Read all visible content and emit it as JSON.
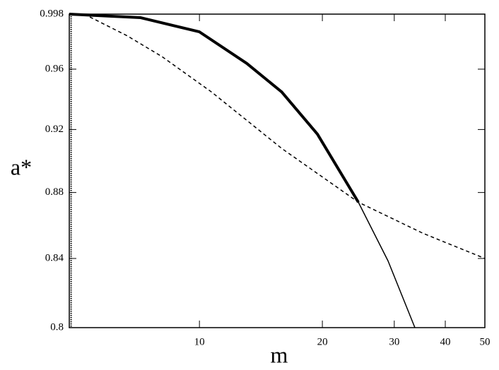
{
  "chart_data": {
    "type": "line",
    "xlabel": "m",
    "ylabel": "a*",
    "xscale": "log",
    "yscale": "log",
    "xlim": [
      4.8,
      50
    ],
    "ylim": [
      0.8,
      0.998
    ],
    "xticks": [
      10,
      20,
      30,
      40,
      50
    ],
    "yticks": [
      0.8,
      0.84,
      0.88,
      0.92,
      0.96,
      0.998
    ],
    "vline": 4.85,
    "series": [
      {
        "color": "#000000",
        "style": "solid",
        "linewidth": 4,
        "x": [
          4.8,
          7.18,
          10,
          13.06,
          15.9,
          19.45,
          24.5
        ],
        "values": [
          0.998,
          0.9955,
          0.9856,
          0.9639,
          0.9447,
          0.917,
          0.874
        ]
      },
      {
        "color": "#000000",
        "style": "solid",
        "linewidth": 1.5,
        "x": [
          24.5,
          28.97,
          33.7
        ],
        "values": [
          0.874,
          0.8385,
          0.8
        ]
      },
      {
        "color": "#000000",
        "style": "dashed",
        "linewidth": 1.5,
        "x": [
          5.22,
          6.64,
          8.09,
          10.7,
          15.9,
          24.5,
          35.3,
          50
        ],
        "values": [
          0.998,
          0.983,
          0.9686,
          0.9447,
          0.9078,
          0.874,
          0.855,
          0.84
        ]
      }
    ]
  }
}
